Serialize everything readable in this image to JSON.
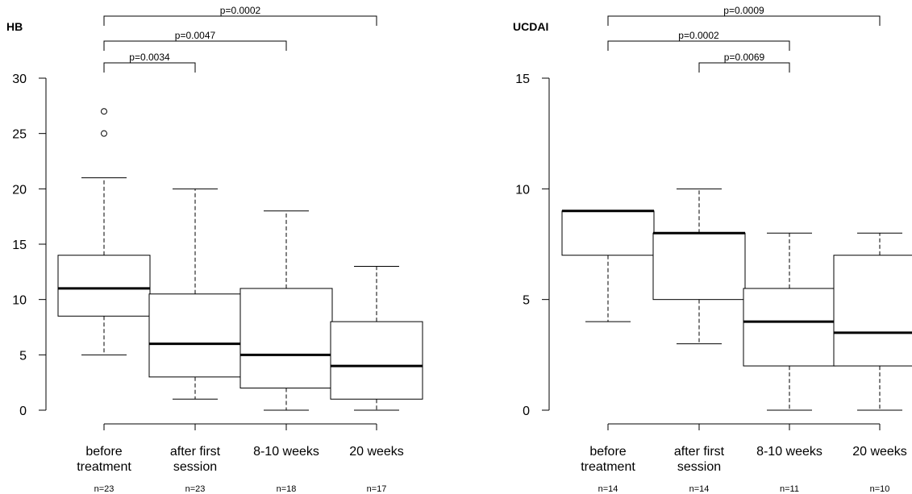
{
  "chart_data": [
    {
      "type": "boxplot",
      "title": "HB",
      "ylim": [
        0,
        30
      ],
      "yticks": [
        0,
        5,
        10,
        15,
        20,
        25,
        30
      ],
      "categories": [
        [
          "before",
          "treatment"
        ],
        [
          "after first",
          "session"
        ],
        [
          "8-10 weeks"
        ],
        [
          "20 weeks"
        ]
      ],
      "counts": [
        "n=23",
        "n=23",
        "n=18",
        "n=17"
      ],
      "boxes": [
        {
          "min": 5,
          "q1": 8.5,
          "median": 11,
          "q3": 14,
          "max": 21,
          "outliers": [
            25,
            27
          ]
        },
        {
          "min": 1,
          "q1": 3,
          "median": 6,
          "q3": 10.5,
          "max": 20,
          "outliers": []
        },
        {
          "min": 0,
          "q1": 2,
          "median": 5,
          "q3": 11,
          "max": 18,
          "outliers": []
        },
        {
          "min": 0,
          "q1": 1,
          "median": 4,
          "q3": 8,
          "max": 13,
          "outliers": []
        }
      ],
      "comparisons": [
        {
          "from": 0,
          "to": 3,
          "label": "p=0.0002"
        },
        {
          "from": 0,
          "to": 2,
          "label": "p=0.0047"
        },
        {
          "from": 0,
          "to": 1,
          "label": "p=0.0034"
        }
      ]
    },
    {
      "type": "boxplot",
      "title": "UCDAI",
      "ylim": [
        0,
        15
      ],
      "yticks": [
        0,
        5,
        10,
        15
      ],
      "categories": [
        [
          "before",
          "treatment"
        ],
        [
          "after first",
          "session"
        ],
        [
          "8-10 weeks"
        ],
        [
          "20 weeks"
        ]
      ],
      "counts": [
        "n=14",
        "n=14",
        "n=11",
        "n=10"
      ],
      "boxes": [
        {
          "min": 4,
          "q1": 7,
          "median": 9,
          "q3": 9,
          "max": 9,
          "outliers": []
        },
        {
          "min": 3,
          "q1": 5,
          "median": 8,
          "q3": 8,
          "max": 10,
          "outliers": []
        },
        {
          "min": 0,
          "q1": 2,
          "median": 4,
          "q3": 5.5,
          "max": 8,
          "outliers": []
        },
        {
          "min": 0,
          "q1": 2,
          "median": 3.5,
          "q3": 7,
          "max": 8,
          "outliers": []
        }
      ],
      "comparisons": [
        {
          "from": 0,
          "to": 3,
          "label": "p=0.0009"
        },
        {
          "from": 0,
          "to": 2,
          "label": "p=0.0002"
        },
        {
          "from": 1,
          "to": 2,
          "label": "p=0.0069"
        }
      ]
    }
  ]
}
